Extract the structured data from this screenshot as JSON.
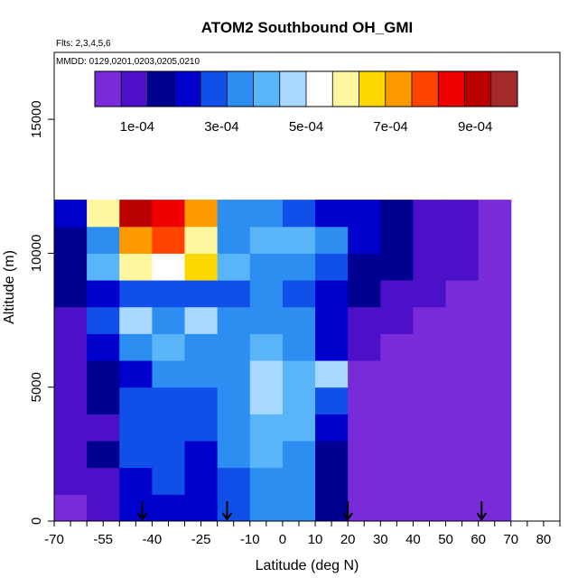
{
  "chart_data": {
    "type": "heatmap",
    "title": "ATOM2 Southbound OH_GMI",
    "flights_note": "Flts: 2,3,4,5,6",
    "dates_note": "MMDD: 0129,0201,0203,0205,0210",
    "xlabel": "Latitude (deg N)",
    "ylabel": "Altitude (m)",
    "xlim": [
      -70,
      85
    ],
    "ylim": [
      0,
      17500
    ],
    "x_tick_labels": [
      "-70",
      "-55",
      "-40",
      "-25",
      "-10",
      "0",
      "10",
      "20",
      "30",
      "40",
      "50",
      "60",
      "70",
      "80"
    ],
    "y_tick_labels": [
      "0",
      "5000",
      "10000",
      "15000"
    ],
    "colorbar": {
      "range": [
        0,
        0.001
      ],
      "tick_labels": [
        "1e-04",
        "3e-04",
        "5e-04",
        "7e-04",
        "9e-04"
      ],
      "colors": [
        "#7a2bd9",
        "#4b10c8",
        "#000090",
        "#0000cc",
        "#1050e8",
        "#2c8ef0",
        "#5ab4f8",
        "#a8d8ff",
        "#ffffff",
        "#fff6a0",
        "#ffd700",
        "#ff9900",
        "#ff4400",
        "#ee0000",
        "#bb0000",
        "#a52a2a"
      ]
    },
    "arrow_latitudes": [
      -43,
      -17,
      20,
      61
    ],
    "latitude_bins": [
      -65,
      -55,
      -45,
      -35,
      -25,
      -15,
      -5,
      5,
      15,
      25,
      35,
      45,
      55,
      65
    ],
    "altitude_bins": [
      500,
      1500,
      2500,
      3500,
      4500,
      5500,
      6500,
      7500,
      8500,
      9500,
      10500,
      11500
    ],
    "oh_values": [
      [
        6e-05,
        0.0001,
        0.00022,
        0.00024,
        0.0002,
        0.00028,
        0.00034,
        0.00032,
        0.00018,
        4e-05,
        2e-05,
        3e-05,
        3e-05,
        1e-05
      ],
      [
        7e-05,
        0.00012,
        0.00024,
        0.00026,
        0.00022,
        0.0003,
        0.00036,
        0.00034,
        0.00016,
        3e-05,
        2e-05,
        2e-05,
        2e-05,
        1e-05
      ],
      [
        8e-05,
        0.00014,
        0.00026,
        0.00028,
        0.00024,
        0.00032,
        0.0004,
        0.00036,
        0.00018,
        3e-05,
        2e-05,
        2e-05,
        2e-05,
        1e-05
      ],
      [
        9e-05,
        0.00012,
        0.00028,
        0.00026,
        0.00026,
        0.00034,
        0.00042,
        0.00038,
        0.0002,
        3e-05,
        2e-05,
        2e-05,
        2e-05,
        1e-05
      ],
      [
        0.0001,
        0.00016,
        0.00028,
        0.0003,
        0.0003,
        0.00036,
        0.00046,
        0.0004,
        0.0003,
        4e-05,
        3e-05,
        2e-05,
        2e-05,
        1e-05
      ],
      [
        0.0001,
        0.00018,
        0.00024,
        0.00032,
        0.00032,
        0.00034,
        0.00044,
        0.0004,
        0.00044,
        6e-05,
        4e-05,
        3e-05,
        2e-05,
        1e-05
      ],
      [
        0.00011,
        0.0002,
        0.00032,
        0.0004,
        0.00034,
        0.00032,
        0.00038,
        0.00036,
        0.00022,
        8e-05,
        6e-05,
        4e-05,
        3e-05,
        1e-05
      ],
      [
        0.00012,
        0.00026,
        0.00044,
        0.00036,
        0.00048,
        0.00034,
        0.00036,
        0.00034,
        0.00024,
        0.00012,
        8e-05,
        6e-05,
        4e-05,
        2e-05
      ],
      [
        0.00014,
        0.00024,
        0.0003,
        0.00028,
        0.00028,
        0.0003,
        0.00032,
        0.0003,
        0.00022,
        0.00014,
        0.0001,
        8e-05,
        6e-05,
        2e-05
      ],
      [
        0.00018,
        0.0004,
        0.00058,
        0.0005,
        0.00064,
        0.00038,
        0.00034,
        0.00032,
        0.00026,
        0.00018,
        0.00014,
        0.0001,
        8e-05,
        3e-05
      ],
      [
        0.00016,
        0.00034,
        0.0007,
        0.00076,
        0.0006,
        0.00036,
        0.00038,
        0.00042,
        0.00034,
        0.00024,
        0.00016,
        0.00012,
        0.0001,
        4e-05
      ],
      [
        0.0002,
        0.0006,
        0.0009,
        0.00086,
        0.00072,
        0.00036,
        0.00034,
        0.0003,
        0.00024,
        0.0002,
        0.00016,
        0.00012,
        0.0001,
        5e-05
      ]
    ]
  }
}
